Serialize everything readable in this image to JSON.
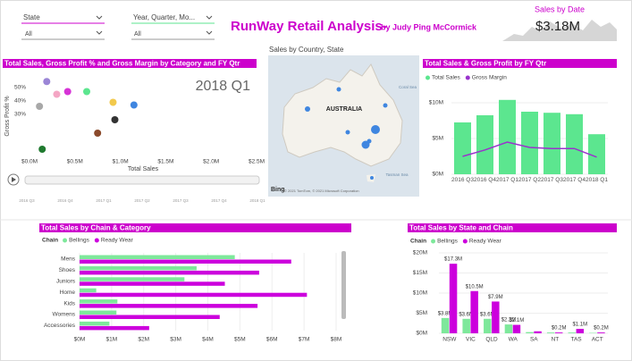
{
  "header": {
    "title": "RunWay Retail Analysis-",
    "byline": "by Judy Ping McCormick"
  },
  "filters": [
    {
      "label": "State",
      "value": "All"
    },
    {
      "label": "Year, Quarter, Mo...",
      "value": "All"
    }
  ],
  "card": {
    "title": "Sales by Date",
    "value": "$3.18M"
  },
  "map": {
    "title": "Sales by Country, State",
    "labels": [
      "AUSTRALIA",
      "Coral Sea",
      "Tasman Sea"
    ],
    "logo": "Bing",
    "credit": "© 2021 TomTom, © 2021 Microsoft Corporation"
  },
  "chart_data": [
    {
      "type": "scatter",
      "title": "Total Sales, Gross Profit % and Gross Margin by Category and FY Qtr",
      "x_label": "Total Sales",
      "y_label": "Gross Profit %",
      "annotation": "2018 Q1",
      "x": [
        0.19,
        0.11,
        0.3,
        0.42,
        0.63,
        0.92,
        1.15,
        0.94,
        0.75,
        0.14
      ],
      "values": [
        54.5,
        36,
        45,
        47,
        47,
        39,
        37,
        26,
        16,
        4
      ],
      "colors": [
        "#9b86d6",
        "#a8a8a8",
        "#f4a6c4",
        "#d633d6",
        "#5ce68f",
        "#f2c94c",
        "#3f86e0",
        "#333333",
        "#8b4a2b",
        "#1f7a2f"
      ],
      "xlim": [
        0,
        2.5
      ],
      "xticks": [
        {
          "value": 0,
          "label": "$0.0M"
        },
        {
          "value": 0.5,
          "label": "$0.5M"
        },
        {
          "value": 1,
          "label": "$1.0M"
        },
        {
          "value": 1.5,
          "label": "$1.5M"
        },
        {
          "value": 2,
          "label": "$2.0M"
        },
        {
          "value": 2.5,
          "label": "$2.5M"
        }
      ],
      "ylim": [
        0,
        55
      ],
      "yticks": [
        {
          "value": 30,
          "label": "30%"
        },
        {
          "value": 40,
          "label": "40%"
        },
        {
          "value": 50,
          "label": "50%"
        }
      ],
      "play_axis": [
        "2016 Q3",
        "2016 Q4",
        "2017 Q1",
        "2017 Q2",
        "2017 Q3",
        "2017 Q4",
        "2018 Q1"
      ]
    },
    {
      "type": "combo",
      "title": "Total Sales & Gross Profit by FY Qtr",
      "categories": [
        "2016 Q3",
        "2016 Q4",
        "2017 Q1",
        "2017 Q2",
        "2017 Q3",
        "2017 Q4",
        "2018 Q1"
      ],
      "series": [
        {
          "name": "Total Sales",
          "color": "#5ce68f",
          "kind": "bar",
          "values": [
            7.25,
            8.25,
            10.4,
            8.75,
            8.6,
            8.4,
            5.6
          ]
        },
        {
          "name": "Gross Margin",
          "color": "#9933cc",
          "kind": "line",
          "values": [
            2.5,
            3.4,
            4.5,
            3.75,
            3.6,
            3.6,
            2.4
          ]
        }
      ],
      "ylim": [
        0,
        11.5
      ],
      "yticks": [
        {
          "value": 0,
          "label": "$0M"
        },
        {
          "value": 5,
          "label": "$5M"
        },
        {
          "value": 10,
          "label": "$10M"
        }
      ]
    },
    {
      "type": "hbar",
      "title": "Total Sales by Chain & Category",
      "legend_title": "Chain",
      "categories": [
        "Mens",
        "Shoes",
        "Juniors",
        "Home",
        "Kids",
        "Womens",
        "Accessories"
      ],
      "series": [
        {
          "name": "Bellings",
          "color": "#7ee89b",
          "values": [
            4.84,
            3.65,
            3.27,
            0.52,
            1.18,
            1.15,
            0.93
          ]
        },
        {
          "name": "Ready Wear",
          "color": "#cc00dd",
          "values": [
            6.6,
            5.6,
            4.53,
            7.09,
            5.55,
            4.37,
            2.17
          ]
        }
      ],
      "xlim": [
        0,
        8
      ],
      "xticks": [
        {
          "value": 0,
          "label": "$0M"
        },
        {
          "value": 1,
          "label": "$1M"
        },
        {
          "value": 2,
          "label": "$2M"
        },
        {
          "value": 3,
          "label": "$3M"
        },
        {
          "value": 4,
          "label": "$4M"
        },
        {
          "value": 5,
          "label": "$5M"
        },
        {
          "value": 6,
          "label": "$6M"
        },
        {
          "value": 7,
          "label": "$7M"
        },
        {
          "value": 8,
          "label": "$8M"
        }
      ]
    },
    {
      "type": "bar",
      "title": "Total Sales by State and Chain",
      "legend_title": "Chain",
      "categories": [
        "NSW",
        "VIC",
        "QLD",
        "WA",
        "SA",
        "NT",
        "TAS",
        "ACT"
      ],
      "series": [
        {
          "name": "Bellings",
          "color": "#7ee89b",
          "values": [
            3.8,
            3.6,
            3.6,
            2.2,
            0.3,
            0.2,
            0.2,
            0.1
          ],
          "value_labels": [
            "$3.8M",
            "$3.6M",
            "$3.6M",
            "$2.2M",
            null,
            null,
            null,
            null
          ]
        },
        {
          "name": "Ready Wear",
          "color": "#cc00dd",
          "values": [
            17.3,
            10.5,
            7.9,
            2.1,
            0.5,
            0.2,
            1.1,
            0.2
          ],
          "value_labels": [
            "$17.3M",
            "$10.5M",
            "$7.9M",
            "$2.1M",
            null,
            "$0.2M",
            "$1.1M",
            "$0.2M"
          ]
        }
      ],
      "ylim": [
        0,
        20
      ],
      "yticks": [
        {
          "value": 0,
          "label": "$0M"
        },
        {
          "value": 5,
          "label": "$5M"
        },
        {
          "value": 10,
          "label": "$10M"
        },
        {
          "value": 15,
          "label": "$15M"
        },
        {
          "value": 20,
          "label": "$20M"
        }
      ]
    }
  ]
}
